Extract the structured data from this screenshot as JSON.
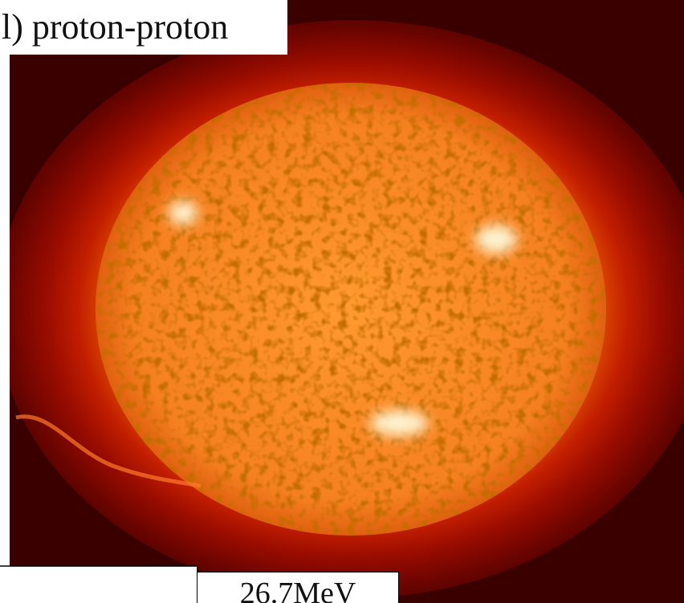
{
  "labels": {
    "title": "l) proton-proton",
    "energy": "26.7MeV"
  }
}
